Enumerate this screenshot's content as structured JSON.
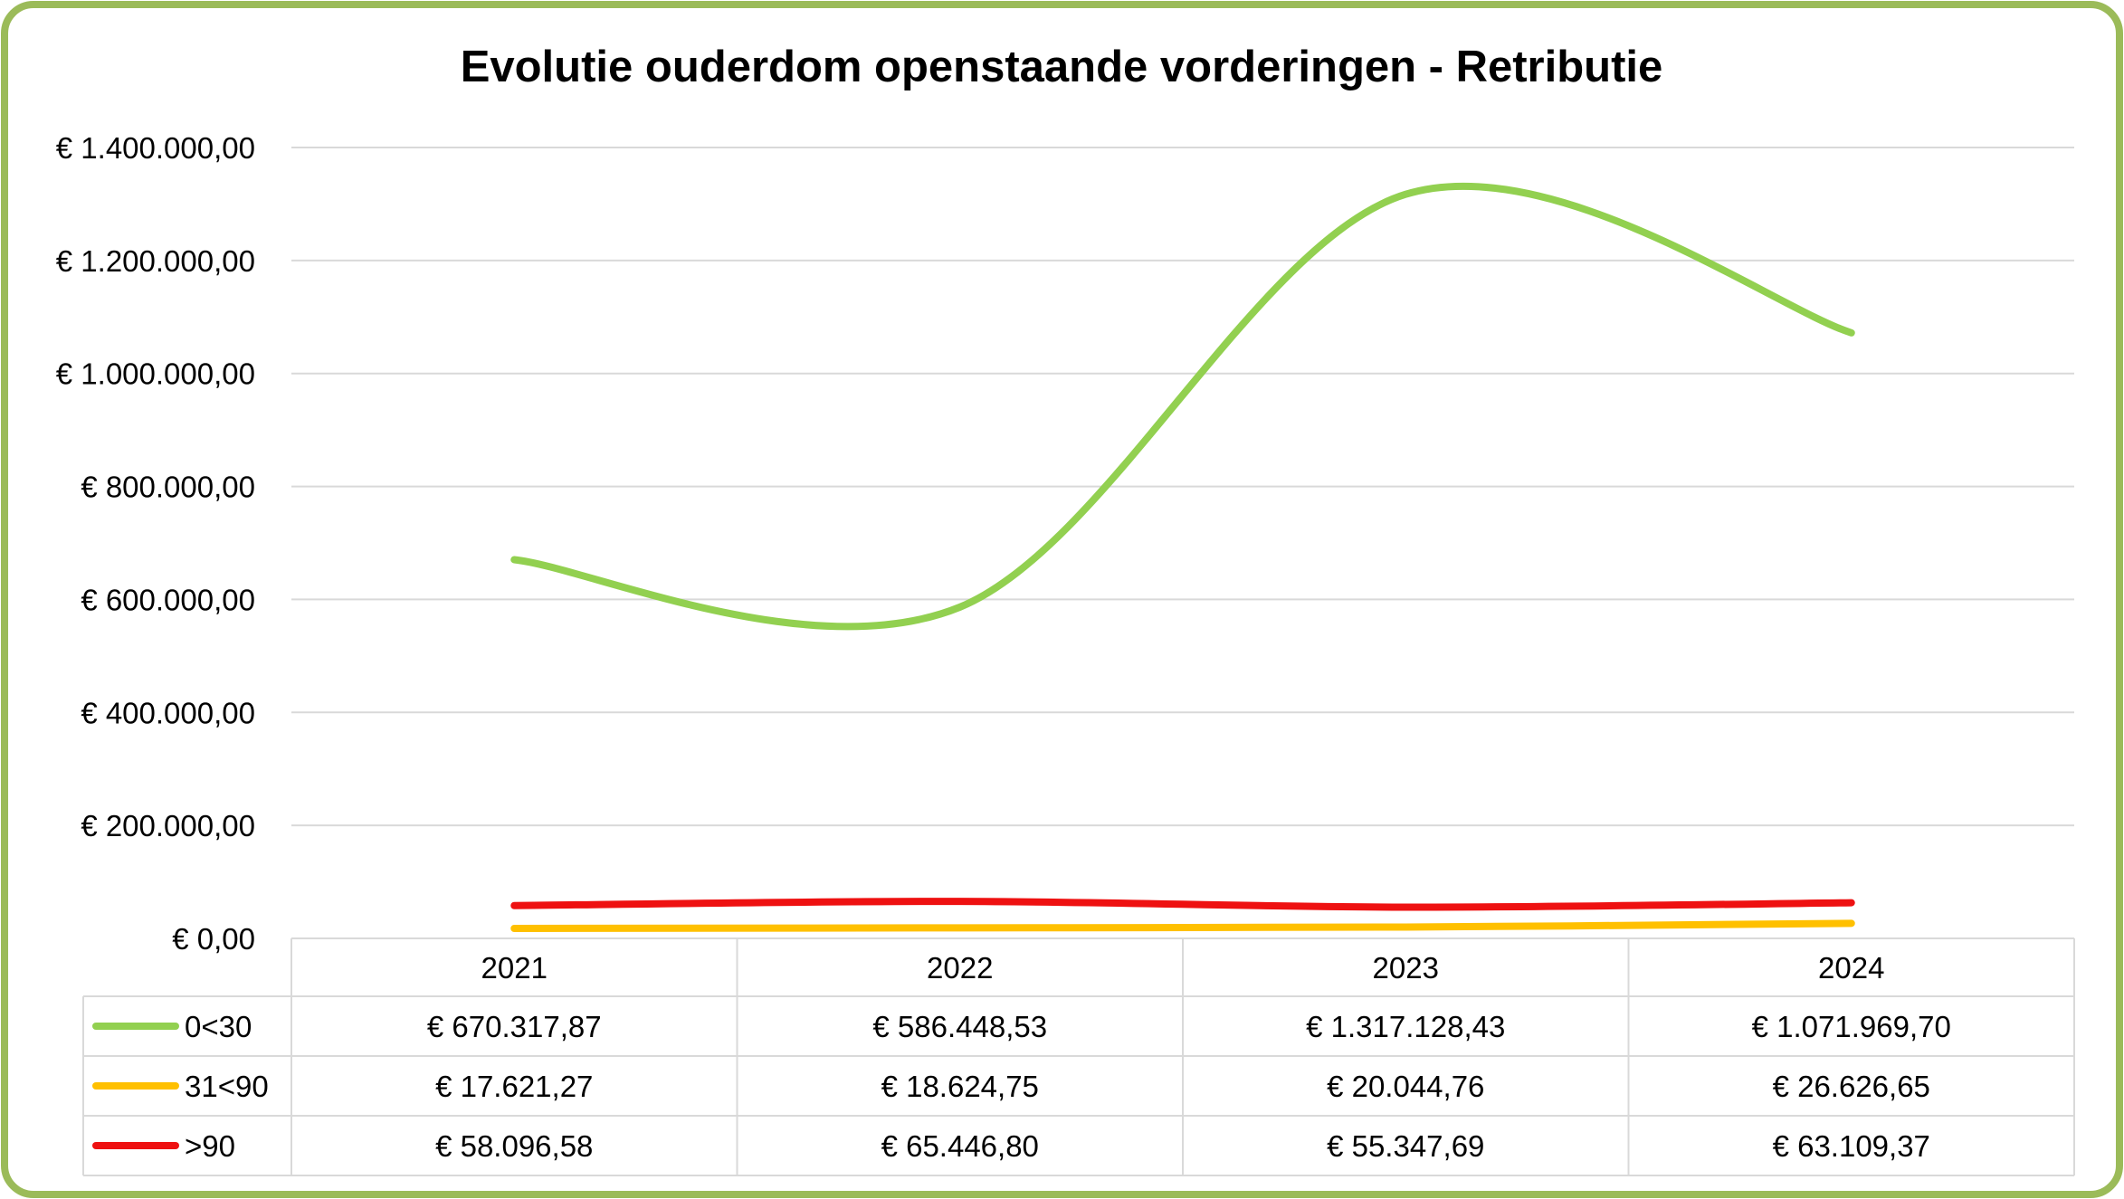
{
  "chart_data": {
    "type": "line",
    "title": "Evolutie ouderdom openstaande vorderingen - Retributie",
    "categories": [
      "2021",
      "2022",
      "2023",
      "2024"
    ],
    "ylim": [
      0,
      1400000
    ],
    "yticks": [
      0,
      200000,
      400000,
      600000,
      800000,
      1000000,
      1200000,
      1400000
    ],
    "ytick_labels": [
      "€ 0,00",
      "€ 200.000,00",
      "€ 400.000,00",
      "€ 600.000,00",
      "€ 800.000,00",
      "€ 1.000.000,00",
      "€ 1.200.000,00",
      "€ 1.400.000,00"
    ],
    "grid": true,
    "smooth": true,
    "legend": "data-table",
    "series": [
      {
        "name": "0<30",
        "color": "#92d050",
        "values": [
          670317.87,
          586448.53,
          1317128.43,
          1071969.7
        ],
        "labels": [
          "€ 670.317,87",
          "€ 586.448,53",
          "€ 1.317.128,43",
          "€ 1.071.969,70"
        ]
      },
      {
        "name": "31<90",
        "color": "#ffc000",
        "values": [
          17621.27,
          18624.75,
          20044.76,
          26626.65
        ],
        "labels": [
          "€ 17.621,27",
          "€ 18.624,75",
          "€ 20.044,76",
          "€ 26.626,65"
        ]
      },
      {
        "name": ">90",
        "color": "#ee1111",
        "values": [
          58096.58,
          65446.8,
          55347.69,
          63109.37
        ],
        "labels": [
          "€ 58.096,58",
          "€ 65.446,80",
          "€ 55.347,69",
          "€ 63.109,37"
        ]
      }
    ]
  },
  "frame_color": "#9bbb59"
}
